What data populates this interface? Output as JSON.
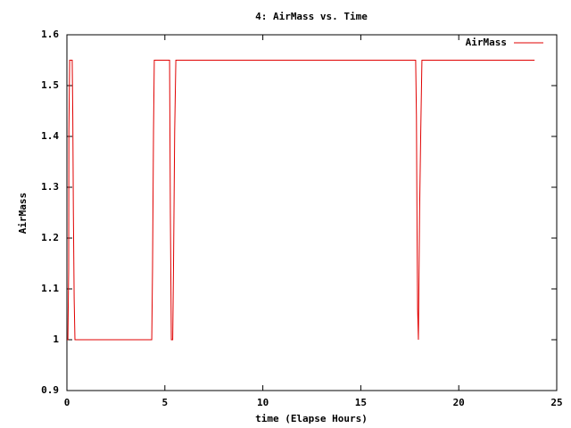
{
  "chart_data": {
    "type": "line",
    "title": "4: AirMass vs. Time",
    "x_label": "time (Elapse Hours)",
    "y_label": "AirMass",
    "x": [
      0,
      0.05,
      0.09,
      0.1,
      0.14,
      0.27,
      0.3,
      0.33,
      0.37,
      0.41,
      4.33,
      4.37,
      4.42,
      4.46,
      5.24,
      5.28,
      5.33,
      5.4,
      5.44,
      5.5,
      5.56,
      17.8,
      17.84,
      17.87,
      17.9,
      17.94,
      18.0,
      18.06,
      18.12,
      23.87
    ],
    "series": [
      {
        "name": "AirMass",
        "color": "#e00000",
        "values": [
          1.0,
          1.0,
          1.14,
          1.41,
          1.55,
          1.55,
          1.44,
          1.25,
          1.08,
          1.0,
          1.0,
          1.14,
          1.41,
          1.55,
          1.55,
          1.25,
          1.0,
          1.0,
          1.14,
          1.41,
          1.55,
          1.55,
          1.44,
          1.22,
          1.06,
          1.0,
          1.25,
          1.41,
          1.55,
          1.55
        ]
      }
    ],
    "xlim": [
      0,
      25
    ],
    "xticks": [
      0,
      5,
      10,
      15,
      20,
      25
    ],
    "ylim": [
      0.9,
      1.6
    ],
    "yticks": [
      0.9,
      1,
      1.1,
      1.2,
      1.3,
      1.4,
      1.5,
      1.6
    ],
    "legend": "top-right"
  }
}
